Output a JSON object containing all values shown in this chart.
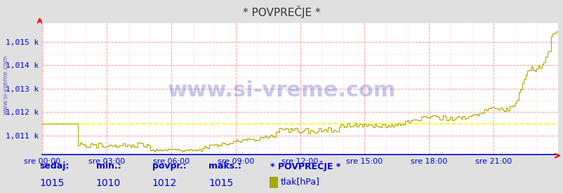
{
  "title": "* POVPREČJE *",
  "bg_color": "#e0e0e0",
  "plot_bg_color": "#ffffff",
  "line_color": "#aaaa00",
  "dashed_line_color": "#ffff00",
  "grid_color_major": "#ff9999",
  "grid_color_minor": "#ffdddd",
  "axis_color": "#0000cc",
  "text_color": "#0000cc",
  "watermark_color": "#0000aa",
  "ylim": [
    1010.2,
    1015.8
  ],
  "yticks": [
    1011,
    1012,
    1013,
    1014,
    1015
  ],
  "ytick_labels": [
    "1,011 k",
    "1,012 k",
    "1,013 k",
    "1,014 k",
    "1,015 k"
  ],
  "xtick_labels": [
    "sre 00:00",
    "sre 03:00",
    "sre 06:00",
    "sre 09:00",
    "sre 12:00",
    "sre 15:00",
    "sre 18:00",
    "sre 21:00"
  ],
  "ylabel": "www.si-vreme.com",
  "footer_labels": [
    "sedaj:",
    "min.:",
    "povpr.:",
    "maks.:"
  ],
  "footer_values": [
    "1015",
    "1010",
    "1012",
    "1015"
  ],
  "legend_title": "* POVPREČJE *",
  "legend_item": "tlak[hPa]",
  "legend_color": "#aaaa00",
  "avg_value": 1011.5,
  "num_points": 288,
  "title_fontsize": 11,
  "tick_fontsize": 8,
  "footer_fontsize": 9
}
